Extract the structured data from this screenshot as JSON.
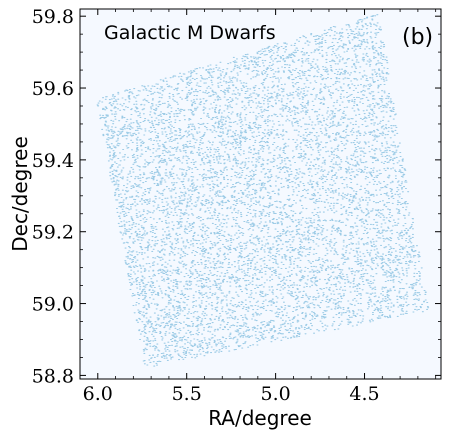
{
  "chart_data": {
    "type": "scatter",
    "title": "Galactic M Dwarfs",
    "panel_label": "(b)",
    "xlabel": "RA/degree",
    "ylabel": "Dec/degree",
    "x_inverted": true,
    "xlim": [
      6.1,
      4.07
    ],
    "ylim": [
      58.79,
      59.82
    ],
    "xticks": [
      6.0,
      5.5,
      5.0,
      4.5
    ],
    "xtick_labels": [
      "6.0",
      "5.5",
      "5.0",
      "4.5"
    ],
    "yticks": [
      58.8,
      59.0,
      59.2,
      59.4,
      59.6,
      59.8
    ],
    "ytick_labels": [
      "58.8",
      "59.0",
      "59.2",
      "59.4",
      "59.6",
      "59.8"
    ],
    "grid": false,
    "colors": {
      "plot_background": "#f5f9ff",
      "points": "#9ccbe6"
    },
    "footprint_corners": [
      {
        "ra": 6.01,
        "dec": 59.57
      },
      {
        "ra": 4.42,
        "dec": 59.81
      },
      {
        "ra": 4.14,
        "dec": 58.98
      },
      {
        "ra": 5.74,
        "dec": 58.82
      }
    ],
    "holes": [
      {
        "ra": 4.96,
        "dec": 59.31,
        "r": 0.027
      },
      {
        "ra": 5.25,
        "dec": 59.26,
        "r": 0.012
      },
      {
        "ra": 5.85,
        "dec": 59.18,
        "r": 0.012
      },
      {
        "ra": 4.62,
        "dec": 59.12,
        "r": 0.01
      },
      {
        "ra": 4.85,
        "dec": 59.1,
        "r": 0.01
      },
      {
        "ra": 5.55,
        "dec": 59.38,
        "r": 0.009
      },
      {
        "ra": 4.72,
        "dec": 59.58,
        "r": 0.009
      }
    ]
  }
}
